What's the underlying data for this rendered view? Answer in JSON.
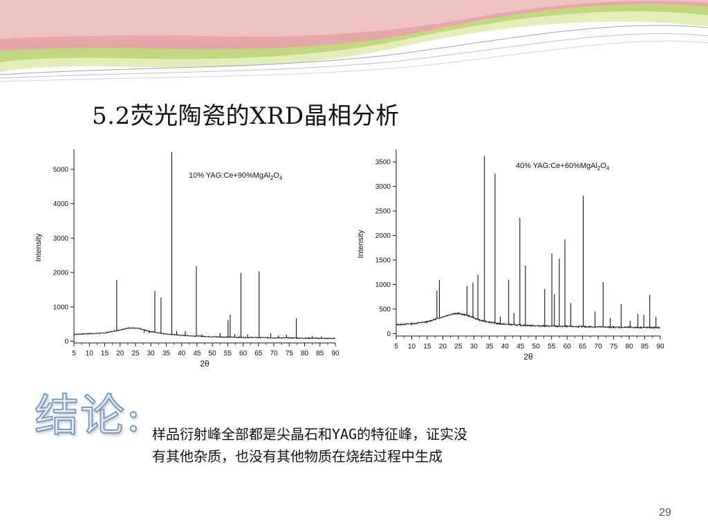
{
  "slide": {
    "title": "5.2荧光陶瓷的XRD晶相分析",
    "conclusion_heading": "结论:",
    "conclusion_lines": [
      "样品衍射峰全部都是尖晶石和YAG的特征峰，证实没",
      "有其他杂质，也没有其他物质在烧结过程中生成"
    ],
    "page_number": "29"
  },
  "colors": {
    "header_pink": "#e4a6a6",
    "header_green": "#c3d77f",
    "header_light_green": "#e4eeb9",
    "trace": "#111111",
    "page_number": "#3a5a9a"
  },
  "chart_data": [
    {
      "type": "line",
      "annotation": "10% YAG:Ce+90%MgAl2O4",
      "annotation_parts": [
        "10% YAG:Ce+90%MgAl",
        "2",
        "O",
        "4"
      ],
      "xlabel": "2θ",
      "ylabel": "Intensity",
      "xlim": [
        5,
        90
      ],
      "ylim": [
        -50,
        5500
      ],
      "xticks": [
        5,
        10,
        15,
        20,
        25,
        30,
        35,
        40,
        45,
        50,
        55,
        60,
        65,
        70,
        75,
        80,
        85,
        90
      ],
      "yticks": [
        0,
        1000,
        2000,
        3000,
        4000,
        5000
      ],
      "baseline": {
        "x": [
          5,
          10,
          15,
          20,
          23,
          26,
          30,
          35,
          40,
          50,
          60,
          70,
          80,
          90
        ],
        "y": [
          200,
          220,
          240,
          330,
          390,
          370,
          280,
          210,
          170,
          130,
          110,
          100,
          90,
          80
        ]
      },
      "peaks": [
        {
          "x": 18.9,
          "y": 1780
        },
        {
          "x": 27.8,
          "y": 250
        },
        {
          "x": 29.5,
          "y": 230
        },
        {
          "x": 31.3,
          "y": 1470
        },
        {
          "x": 33.3,
          "y": 1270
        },
        {
          "x": 36.8,
          "y": 5500
        },
        {
          "x": 38.4,
          "y": 300
        },
        {
          "x": 41.2,
          "y": 290
        },
        {
          "x": 44.8,
          "y": 2180
        },
        {
          "x": 46.6,
          "y": 200
        },
        {
          "x": 52.5,
          "y": 240
        },
        {
          "x": 55.1,
          "y": 610
        },
        {
          "x": 55.8,
          "y": 770
        },
        {
          "x": 57.3,
          "y": 210
        },
        {
          "x": 59.3,
          "y": 1990
        },
        {
          "x": 61.5,
          "y": 200
        },
        {
          "x": 65.2,
          "y": 2030
        },
        {
          "x": 69.0,
          "y": 230
        },
        {
          "x": 71.5,
          "y": 170
        },
        {
          "x": 74.1,
          "y": 190
        },
        {
          "x": 77.3,
          "y": 670
        },
        {
          "x": 82.5,
          "y": 150
        },
        {
          "x": 85.5,
          "y": 140
        }
      ]
    },
    {
      "type": "line",
      "annotation": "40% YAG:Ce+60%MgAl2O4",
      "annotation_parts": [
        "40% YAG:Ce+60%MgAl",
        "2",
        "O",
        "4"
      ],
      "xlabel": "2θ",
      "ylabel": "Intensity",
      "xlim": [
        5,
        90
      ],
      "ylim": [
        -50,
        3700
      ],
      "xticks": [
        5,
        10,
        15,
        20,
        25,
        30,
        35,
        40,
        45,
        50,
        55,
        60,
        65,
        70,
        75,
        80,
        85,
        90
      ],
      "yticks": [
        0,
        500,
        1000,
        1500,
        2000,
        2500,
        3000,
        3500
      ],
      "baseline": {
        "x": [
          5,
          10,
          15,
          20,
          23,
          25,
          28,
          32,
          38,
          45,
          55,
          65,
          75,
          90
        ],
        "y": [
          180,
          200,
          240,
          340,
          400,
          410,
          370,
          270,
          200,
          170,
          150,
          140,
          130,
          120
        ]
      },
      "peaks": [
        {
          "x": 18.1,
          "y": 880
        },
        {
          "x": 18.9,
          "y": 1090
        },
        {
          "x": 27.8,
          "y": 970
        },
        {
          "x": 29.7,
          "y": 1040
        },
        {
          "x": 31.3,
          "y": 1200
        },
        {
          "x": 33.4,
          "y": 3620
        },
        {
          "x": 36.8,
          "y": 3260
        },
        {
          "x": 38.5,
          "y": 350
        },
        {
          "x": 41.2,
          "y": 1100
        },
        {
          "x": 42.9,
          "y": 420
        },
        {
          "x": 44.8,
          "y": 2360
        },
        {
          "x": 46.6,
          "y": 1390
        },
        {
          "x": 52.8,
          "y": 910
        },
        {
          "x": 55.1,
          "y": 1630
        },
        {
          "x": 55.9,
          "y": 800
        },
        {
          "x": 57.5,
          "y": 1530
        },
        {
          "x": 59.3,
          "y": 1920
        },
        {
          "x": 61.2,
          "y": 620
        },
        {
          "x": 65.2,
          "y": 2810
        },
        {
          "x": 69.0,
          "y": 450
        },
        {
          "x": 71.6,
          "y": 1050
        },
        {
          "x": 73.9,
          "y": 320
        },
        {
          "x": 77.4,
          "y": 600
        },
        {
          "x": 80.3,
          "y": 260
        },
        {
          "x": 82.8,
          "y": 400
        },
        {
          "x": 84.7,
          "y": 380
        },
        {
          "x": 86.6,
          "y": 790
        },
        {
          "x": 88.6,
          "y": 340
        }
      ]
    }
  ]
}
